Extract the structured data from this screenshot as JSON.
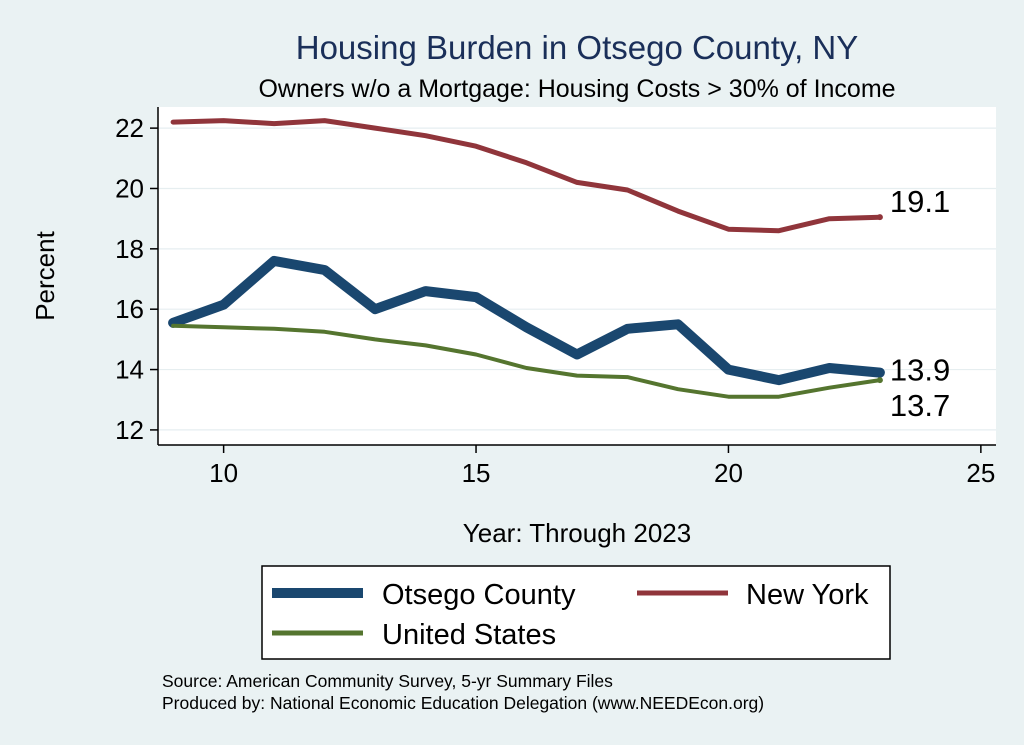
{
  "chart_data": {
    "type": "line",
    "title": "Housing Burden in Otsego County, NY",
    "subtitle": "Owners w/o a Mortgage: Housing Costs > 30% of Income",
    "xlabel": "Year: Through 2023",
    "ylabel": "Percent",
    "xlim": [
      8.7,
      25.3
    ],
    "ylim": [
      11.5,
      22.7
    ],
    "x_ticks": [
      10,
      15,
      20,
      25
    ],
    "y_ticks": [
      12,
      14,
      16,
      18,
      20,
      22
    ],
    "grid": true,
    "legend_position": "bottom",
    "x": [
      9,
      10,
      11,
      12,
      13,
      14,
      15,
      16,
      17,
      18,
      19,
      20,
      21,
      22,
      23
    ],
    "series": [
      {
        "name": "Otsego County",
        "color": "#1a476f",
        "values": [
          15.55,
          16.15,
          17.6,
          17.3,
          16.0,
          16.6,
          16.4,
          15.4,
          14.5,
          15.35,
          15.5,
          14.0,
          13.65,
          14.05,
          13.9
        ],
        "end_label": "13.9"
      },
      {
        "name": "New York",
        "color": "#90353b",
        "values": [
          22.2,
          22.25,
          22.15,
          22.25,
          22.0,
          21.75,
          21.4,
          20.85,
          20.2,
          19.95,
          19.25,
          18.65,
          18.6,
          19.0,
          19.05
        ],
        "end_label": "19.1"
      },
      {
        "name": "United States",
        "color": "#55752f",
        "values": [
          15.45,
          15.4,
          15.35,
          15.25,
          15.0,
          14.8,
          14.5,
          14.05,
          13.8,
          13.75,
          13.35,
          13.1,
          13.1,
          13.4,
          13.65
        ],
        "end_label": "13.7"
      }
    ]
  },
  "source_lines": [
    "Source: American Community Survey, 5-yr Summary Files",
    "Produced by: National Economic Education Delegation (www.NEEDEcon.org)"
  ]
}
